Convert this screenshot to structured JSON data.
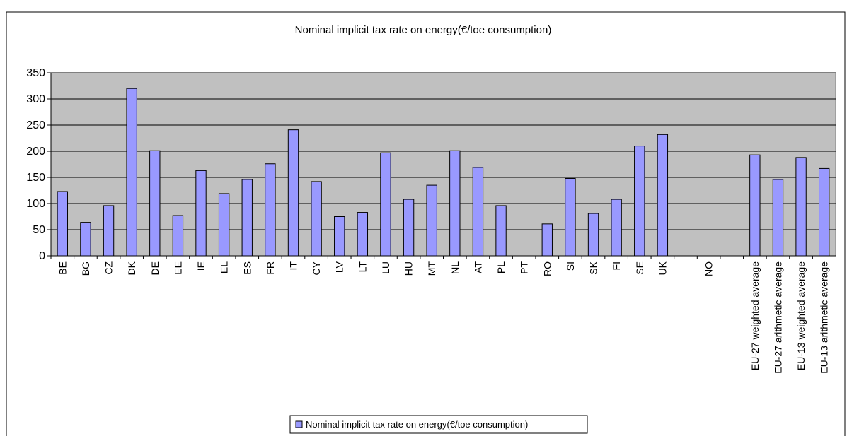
{
  "chart_data": {
    "type": "bar",
    "title": "Nominal implicit tax rate on energy(€/toe consumption)",
    "categories": [
      "BE",
      "BG",
      "CZ",
      "DK",
      "DE",
      "EE",
      "IE",
      "EL",
      "ES",
      "FR",
      "IT",
      "CY",
      "LV",
      "LT",
      "LU",
      "HU",
      "MT",
      "NL",
      "AT",
      "PL",
      "PT",
      "RO",
      "SI",
      "SK",
      "FI",
      "SE",
      "UK",
      null,
      "NO",
      null,
      "EU-27 weighted average",
      "EU-27 arithmetic average",
      "EU-13 weighted average",
      "EU-13 arithmetic average"
    ],
    "series": [
      {
        "name": "Nominal implicit tax rate on energy(€/toe consumption)",
        "color": "#9999ff",
        "values": [
          123,
          64,
          96,
          320,
          201,
          77,
          163,
          119,
          146,
          176,
          241,
          142,
          75,
          83,
          197,
          108,
          135,
          201,
          169,
          96,
          null,
          61,
          148,
          81,
          108,
          210,
          232,
          null,
          null,
          null,
          193,
          146,
          188,
          167
        ]
      }
    ],
    "ylim": [
      0,
      350
    ],
    "yticks": [
      0,
      50,
      100,
      150,
      200,
      250,
      300,
      350
    ],
    "grid": true,
    "legend": "bottom"
  }
}
